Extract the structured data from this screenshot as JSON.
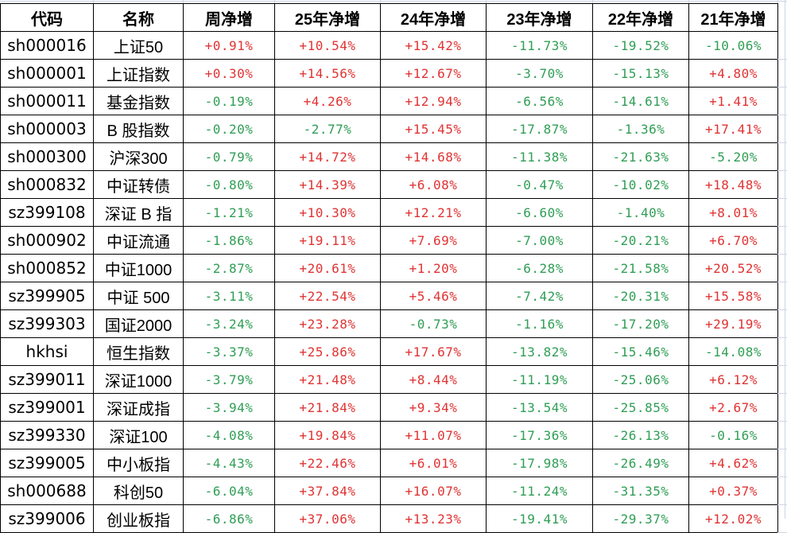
{
  "chart_data": {
    "type": "table",
    "columns": [
      "代码",
      "名称",
      "周净增",
      "25年净增",
      "24年净增",
      "23年净增",
      "22年净增",
      "21年净增"
    ],
    "rows": [
      {
        "code": "sh000016",
        "name": "上证50",
        "values": [
          "+0.91%",
          "+10.54%",
          "+15.42%",
          "-11.73%",
          "-19.52%",
          "-10.06%"
        ]
      },
      {
        "code": "sh000001",
        "name": "上证指数",
        "values": [
          "+0.30%",
          "+14.56%",
          "+12.67%",
          "-3.70%",
          "-15.13%",
          "+4.80%"
        ]
      },
      {
        "code": "sh000011",
        "name": "基金指数",
        "values": [
          "-0.19%",
          "+4.26%",
          "+12.94%",
          "-6.56%",
          "-14.61%",
          "+1.41%"
        ]
      },
      {
        "code": "sh000003",
        "name": "B 股指数",
        "values": [
          "-0.20%",
          "-2.77%",
          "+15.45%",
          "-17.87%",
          "-1.36%",
          "+17.41%"
        ]
      },
      {
        "code": "sh000300",
        "name": "沪深300",
        "values": [
          "-0.79%",
          "+14.72%",
          "+14.68%",
          "-11.38%",
          "-21.63%",
          "-5.20%"
        ]
      },
      {
        "code": "sh000832",
        "name": "中证转债",
        "values": [
          "-0.80%",
          "+14.39%",
          "+6.08%",
          "-0.47%",
          "-10.02%",
          "+18.48%"
        ]
      },
      {
        "code": "sz399108",
        "name": "深证 B 指",
        "values": [
          "-1.21%",
          "+10.30%",
          "+12.21%",
          "-6.60%",
          "-1.40%",
          "+8.01%"
        ]
      },
      {
        "code": "sh000902",
        "name": "中证流通",
        "values": [
          "-1.86%",
          "+19.11%",
          "+7.69%",
          "-7.00%",
          "-20.21%",
          "+6.70%"
        ]
      },
      {
        "code": "sh000852",
        "name": "中证1000",
        "values": [
          "-2.87%",
          "+20.61%",
          "+1.20%",
          "-6.28%",
          "-21.58%",
          "+20.52%"
        ]
      },
      {
        "code": "sz399905",
        "name": "中证 500",
        "values": [
          "-3.11%",
          "+22.54%",
          "+5.46%",
          "-7.42%",
          "-20.31%",
          "+15.58%"
        ]
      },
      {
        "code": "sz399303",
        "name": "国证2000",
        "values": [
          "-3.24%",
          "+23.28%",
          "-0.73%",
          "-1.16%",
          "-17.20%",
          "+29.19%"
        ]
      },
      {
        "code": "hkhsi",
        "name": "恒生指数",
        "values": [
          "-3.37%",
          "+25.86%",
          "+17.67%",
          "-13.82%",
          "-15.46%",
          "-14.08%"
        ]
      },
      {
        "code": "sz399011",
        "name": "深证1000",
        "values": [
          "-3.79%",
          "+21.48%",
          "+8.44%",
          "-11.19%",
          "-25.06%",
          "+6.12%"
        ]
      },
      {
        "code": "sz399001",
        "name": "深证成指",
        "values": [
          "-3.94%",
          "+21.84%",
          "+9.34%",
          "-13.54%",
          "-25.85%",
          "+2.67%"
        ]
      },
      {
        "code": "sz399330",
        "name": "深证100",
        "values": [
          "-4.08%",
          "+19.84%",
          "+11.07%",
          "-17.36%",
          "-26.13%",
          "-0.16%"
        ]
      },
      {
        "code": "sz399005",
        "name": "中小板指",
        "values": [
          "-4.43%",
          "+22.46%",
          "+6.01%",
          "-17.98%",
          "-26.49%",
          "+4.62%"
        ]
      },
      {
        "code": "sh000688",
        "name": "科创50",
        "values": [
          "-6.04%",
          "+37.84%",
          "+16.07%",
          "-11.24%",
          "-31.35%",
          "+0.37%"
        ]
      },
      {
        "code": "sz399006",
        "name": "创业板指",
        "values": [
          "-6.86%",
          "+37.06%",
          "+13.23%",
          "-19.41%",
          "-29.37%",
          "+12.02%"
        ]
      }
    ]
  },
  "colors": {
    "up": "#e03333",
    "down": "#2f9e55",
    "border": "#000000",
    "excel_gridline": "#ccd6e5"
  }
}
